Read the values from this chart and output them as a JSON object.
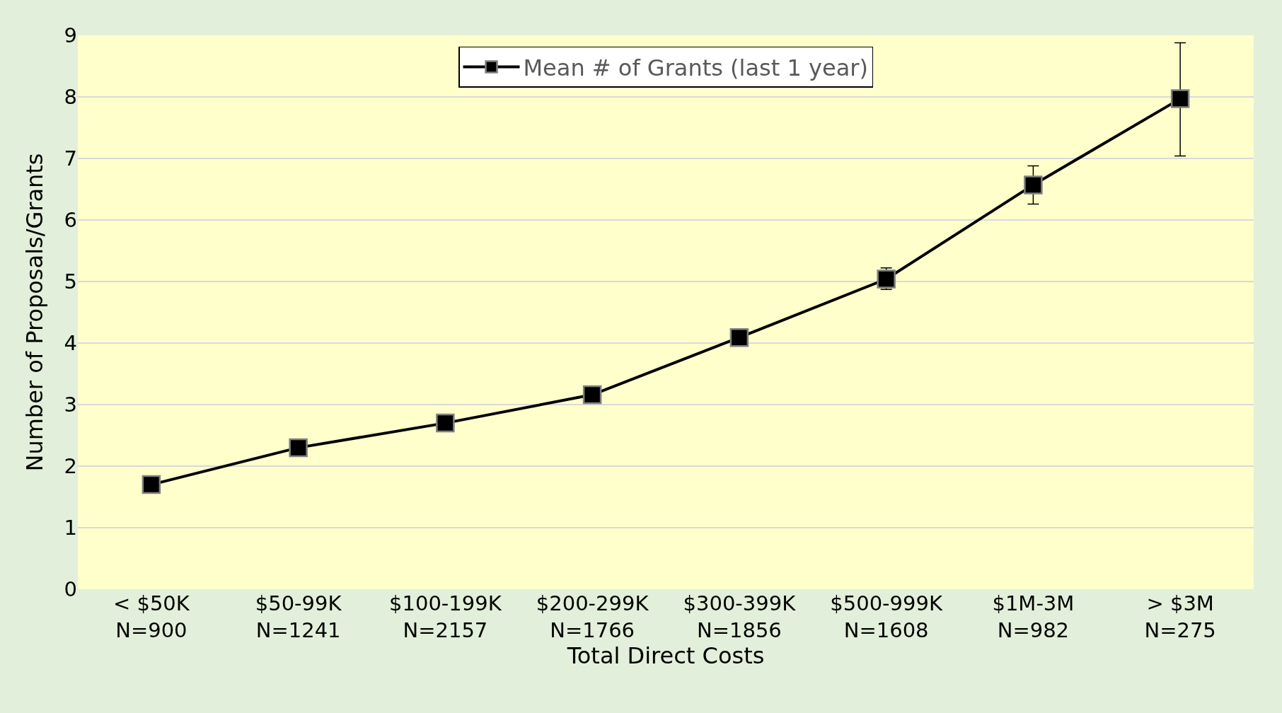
{
  "chart_data": {
    "type": "line",
    "xlabel": "Total Direct Costs",
    "ylabel": "Number of Proposals/Grants",
    "categories": [
      "< $50K\nN=900",
      "$50-99K\nN=1241",
      "$100-199K\nN=2157",
      "$200-299K\nN=1766",
      "$300-399K\nN=1856",
      "$500-999K\nN=1608",
      "$1M-3M\nN=982",
      "> $3M\nN=275"
    ],
    "series": [
      {
        "name": "Mean # of Grants (last 1 year)",
        "color": "#000000",
        "values": [
          1.7,
          2.3,
          2.7,
          3.16,
          4.09,
          5.04,
          6.57,
          7.97
        ],
        "errors": [
          null,
          null,
          null,
          null,
          null,
          [
            4.87,
            5.22
          ],
          [
            6.26,
            6.88
          ],
          [
            7.04,
            8.88
          ]
        ]
      }
    ],
    "ylim": [
      0,
      9
    ],
    "yticks": [
      0,
      1,
      2,
      3,
      4,
      5,
      6,
      7,
      8,
      9
    ],
    "grid": "y",
    "legend": "top",
    "marker": "square",
    "line_style": "solid"
  }
}
